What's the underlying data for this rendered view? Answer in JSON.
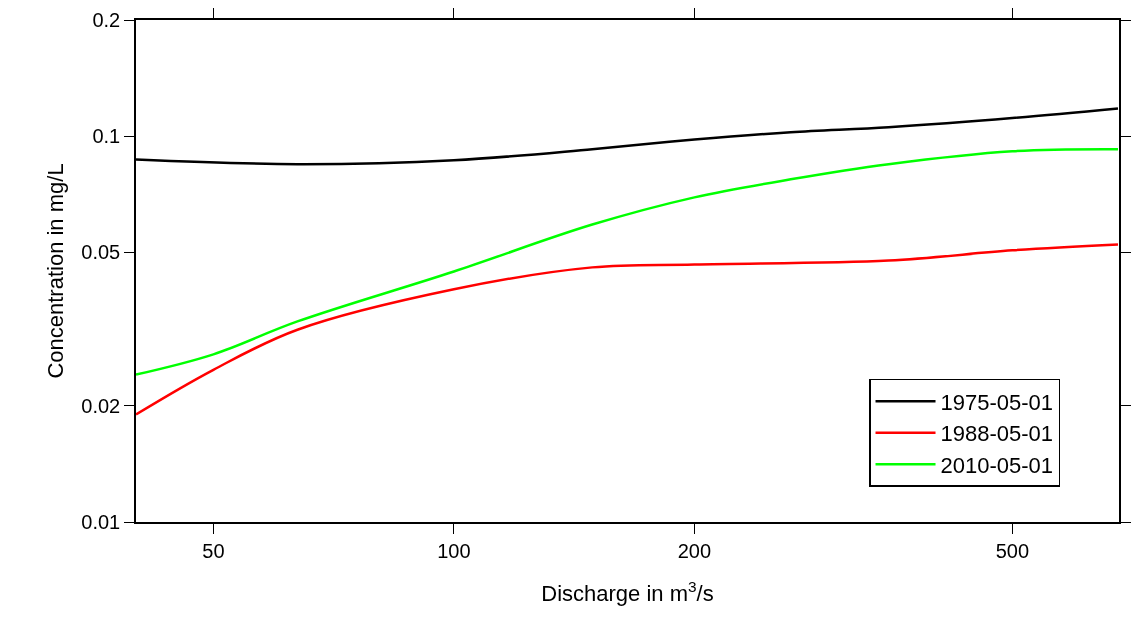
{
  "chart_data": {
    "type": "line",
    "xlabel": "Discharge in m$^{3}$/s",
    "ylabel": "Concentration in mg/L",
    "log": "xy",
    "xlim": [
      40,
      680
    ],
    "ylim": [
      0.01,
      0.2
    ],
    "xticks": [
      50,
      100,
      200,
      500
    ],
    "yticks": [
      0.01,
      0.02,
      0.05,
      0.1,
      0.2
    ],
    "legend": "bottom right",
    "marker": "none",
    "line_style": "solid",
    "series": [
      {
        "name": "1975-05-01",
        "color": "#000000",
        "x": [
          40,
          63.7,
          100,
          149,
          200,
          264,
          350,
          500,
          678
        ],
        "values": [
          0.087,
          0.0846,
          0.0866,
          0.0925,
          0.098,
          0.1024,
          0.1055,
          0.1114,
          0.118
        ]
      },
      {
        "name": "1988-05-01",
        "color": "#ff0000",
        "x": [
          40,
          50,
          63.7,
          100,
          149,
          200,
          350,
          500,
          678
        ],
        "values": [
          0.019,
          0.0248,
          0.0315,
          0.0401,
          0.0457,
          0.0465,
          0.0476,
          0.0506,
          0.0524
        ]
      },
      {
        "name": "2010-05-01",
        "color": "#00ff00",
        "x": [
          40,
          50,
          63.7,
          100,
          149,
          200,
          264,
          350,
          500,
          678
        ],
        "values": [
          0.0241,
          0.0272,
          0.0331,
          0.0446,
          0.059,
          0.0694,
          0.0773,
          0.0846,
          0.0914,
          0.0925
        ]
      }
    ]
  }
}
